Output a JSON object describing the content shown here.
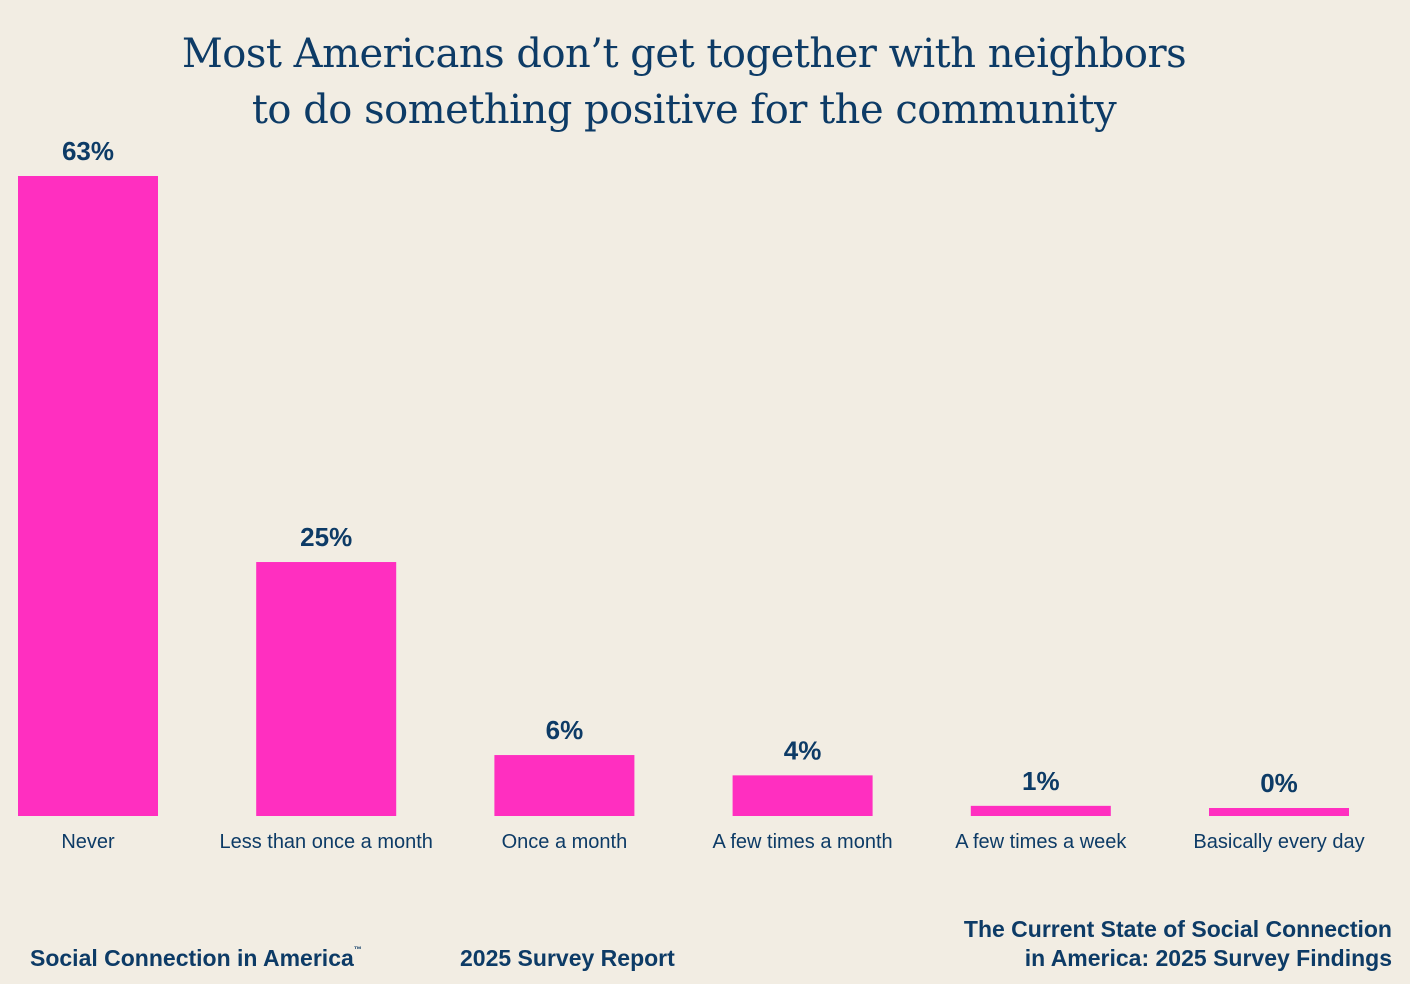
{
  "chart_data": {
    "type": "bar",
    "title": [
      "Most Americans don’t get together with neighbors",
      "to do something positive for the community"
    ],
    "categories": [
      "Never",
      "Less than once a month",
      "Once a month",
      "A few times a month",
      "A few times a week",
      "Basically every day"
    ],
    "values": [
      63,
      25,
      6,
      4,
      1,
      0
    ],
    "data_labels": [
      "63%",
      "25%",
      "6%",
      "4%",
      "1%",
      "0%"
    ],
    "xlabel": "",
    "ylabel": "",
    "ylim": [
      0,
      63
    ],
    "grid": false,
    "bar_color": "#ff2fc0",
    "text_color": "#0d3b66"
  },
  "footer": {
    "brand": "Social Connection in America",
    "trademark": "™",
    "report": "2025 Survey Report",
    "source_line1": "The Current State of Social Connection",
    "source_line2": "in America: 2025 Survey Findings"
  }
}
